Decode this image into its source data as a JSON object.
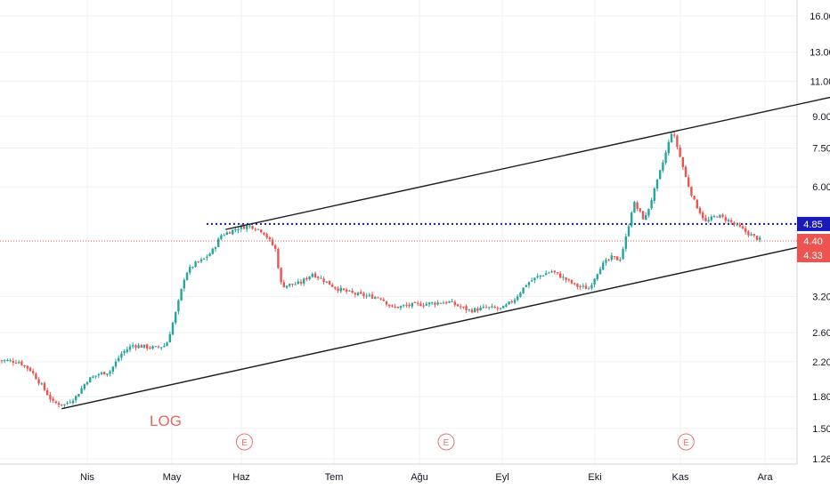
{
  "chart_data": {
    "type": "candlestick",
    "scale": "log",
    "grid": true,
    "watermark": "LOG",
    "y_ticks": [
      16.0,
      13.0,
      11.0,
      9.0,
      7.5,
      6.0,
      4.85,
      4.4,
      4.33,
      3.2,
      2.6,
      2.2,
      1.8,
      1.5,
      1.26
    ],
    "x_labels": [
      "Nis",
      "May",
      "Haz",
      "Tem",
      "Ağu",
      "Eyl",
      "Eki",
      "Kas",
      "Ara"
    ],
    "price_badges": [
      {
        "value": "4.85",
        "color": "#1a1ab8"
      },
      {
        "value": "4.40",
        "color": "#ef5350"
      },
      {
        "value": "4.33",
        "color": "#ef5350"
      }
    ],
    "levels": [
      {
        "value": 4.85,
        "style": "dotted",
        "color": "#1a1ab8"
      },
      {
        "value": 4.4,
        "style": "dotted",
        "color": "#ef5350"
      }
    ],
    "channel": {
      "lower": {
        "from": [
          "Mar 23",
          1.68
        ],
        "to": [
          "Ara 24",
          4.4
        ]
      },
      "upper": {
        "from": [
          "May 25",
          4.7
        ],
        "to": [
          "Ara 30",
          10.2
        ]
      }
    },
    "earnings_markers": [
      {
        "label": "E",
        "date": "Haz 2"
      },
      {
        "label": "E",
        "date": "Ağu 11"
      },
      {
        "label": "E",
        "date": "Kas 3"
      }
    ],
    "series_points": [
      [
        "Mar 1",
        2.22
      ],
      [
        "Mar 8",
        2.2
      ],
      [
        "Mar 12",
        2.1
      ],
      [
        "Mar 16",
        1.92
      ],
      [
        "Mar 20",
        1.74
      ],
      [
        "Mar 24",
        1.72
      ],
      [
        "Mar 28",
        1.8
      ],
      [
        "Nis 1",
        1.98
      ],
      [
        "Nis 5",
        2.05
      ],
      [
        "Nis 9",
        2.08
      ],
      [
        "Nis 13",
        2.3
      ],
      [
        "Nis 17",
        2.42
      ],
      [
        "Nis 21",
        2.4
      ],
      [
        "Nis 25",
        2.38
      ],
      [
        "Nis 29",
        2.42
      ],
      [
        "May 3",
        2.95
      ],
      [
        "May 7",
        3.65
      ],
      [
        "May 11",
        3.85
      ],
      [
        "May 15",
        3.95
      ],
      [
        "May 19",
        4.15
      ],
      [
        "May 23",
        4.55
      ],
      [
        "May 27",
        4.65
      ],
      [
        "May 31",
        4.75
      ],
      [
        "Haz 4",
        4.8
      ],
      [
        "Haz 8",
        4.65
      ],
      [
        "Haz 12",
        4.2
      ],
      [
        "Haz 14",
        3.4
      ],
      [
        "Haz 20",
        3.45
      ],
      [
        "Haz 24",
        3.65
      ],
      [
        "Haz 28",
        3.5
      ],
      [
        "Tem 2",
        3.35
      ],
      [
        "Tem 8",
        3.25
      ],
      [
        "Tem 14",
        3.2
      ],
      [
        "Tem 18",
        3.18
      ],
      [
        "Tem 22",
        3.0
      ],
      [
        "Tem 30",
        3.05
      ],
      [
        "Ağu 6",
        3.08
      ],
      [
        "Ağu 12",
        3.1
      ],
      [
        "Ağu 16",
        3.02
      ],
      [
        "Ağu 20",
        2.95
      ],
      [
        "Ağu 26",
        3.0
      ],
      [
        "Eyl 1",
        2.98
      ],
      [
        "Eyl 5",
        3.15
      ],
      [
        "Eyl 9",
        3.45
      ],
      [
        "Eyl 13",
        3.6
      ],
      [
        "Eyl 17",
        3.7
      ],
      [
        "Eyl 21",
        3.55
      ],
      [
        "Eyl 25",
        3.4
      ],
      [
        "Eyl 29",
        3.35
      ],
      [
        "Eki 3",
        3.8
      ],
      [
        "Eki 7",
        4.0
      ],
      [
        "Eki 10",
        3.95
      ],
      [
        "Eki 12",
        4.4
      ],
      [
        "Eki 15",
        5.5
      ],
      [
        "Eki 19",
        4.95
      ],
      [
        "Eki 23",
        6.0
      ],
      [
        "Eki 27",
        7.4
      ],
      [
        "Eki 29",
        8.3
      ],
      [
        "Eki 31",
        7.5
      ],
      [
        "Kas 3",
        6.3
      ],
      [
        "Kas 6",
        5.5
      ],
      [
        "Kas 10",
        4.9
      ],
      [
        "Kas 14",
        5.1
      ],
      [
        "Kas 18",
        4.95
      ],
      [
        "Kas 22",
        4.75
      ],
      [
        "Kas 26",
        4.55
      ],
      [
        "Kas 30",
        4.4
      ]
    ],
    "colors": {
      "up": "#26a69a",
      "down": "#ef5350",
      "channel": "#1e1e1e",
      "text": "#131722",
      "grid": "#eef1f5"
    }
  }
}
